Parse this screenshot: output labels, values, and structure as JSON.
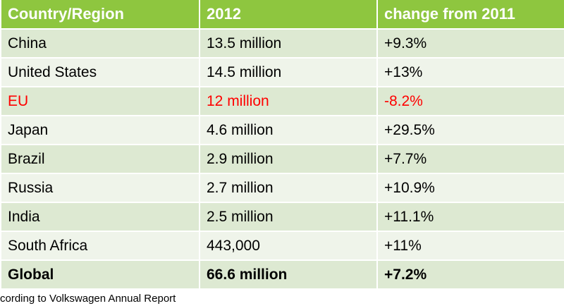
{
  "chart_data": {
    "type": "table",
    "columns": [
      "Country/Region",
      "2012",
      "change from 2011"
    ],
    "rows": [
      {
        "region": "China",
        "sales_2012": "13.5 million",
        "change": "+9.3%"
      },
      {
        "region": "United States",
        "sales_2012": "14.5 million",
        "change": "+13%"
      },
      {
        "region": "EU",
        "sales_2012": "12 million",
        "change": "-8.2%"
      },
      {
        "region": "Japan",
        "sales_2012": "4.6 million",
        "change": "+29.5%"
      },
      {
        "region": "Brazil",
        "sales_2012": "2.9 million",
        "change": "+7.7%"
      },
      {
        "region": "Russia",
        "sales_2012": "2.7 million",
        "change": "+10.9%"
      },
      {
        "region": "India",
        "sales_2012": "2.5 million",
        "change": "+11.1%"
      },
      {
        "region": "South Africa",
        "sales_2012": "443,000",
        "change": "+11%"
      },
      {
        "region": "Global",
        "sales_2012": "66.6 million",
        "change": "+7.2%"
      }
    ],
    "highlight_color": "#ff0000",
    "header_color": "#8ec63f",
    "row_color_odd": "#dde9d2",
    "row_color_even": "#eff4ea"
  },
  "footnote": "cording to Volkswagen Annual Report"
}
